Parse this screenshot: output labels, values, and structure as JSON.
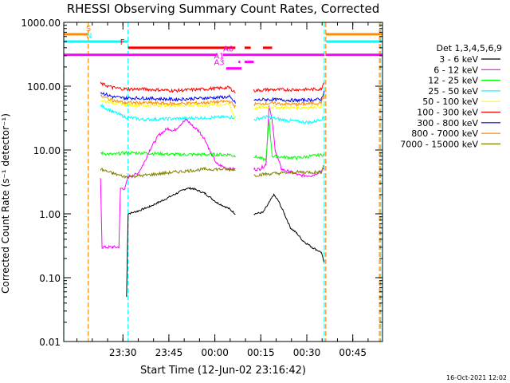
{
  "chart_data": {
    "type": "line",
    "title": "RHESSI Observing Summary Count Rates, Corrected",
    "xlabel": "Start Time (12-Jun-02 23:16:42)",
    "ylabel": "Corrected Count Rate (s⁻¹ detector⁻¹)",
    "yscale": "log",
    "ylim": [
      0.01,
      1000
    ],
    "xlim_minutes": [
      -6,
      98
    ],
    "y_ticks": [
      {
        "v": 1000,
        "label": "1000.00"
      },
      {
        "v": 100,
        "label": "100.00"
      },
      {
        "v": 10,
        "label": "10.00"
      },
      {
        "v": 1,
        "label": "1.00"
      },
      {
        "v": 0.1,
        "label": "0.10"
      },
      {
        "v": 0.01,
        "label": "0.01"
      }
    ],
    "x_ticks": [
      {
        "t": 13.3,
        "label": "23:30"
      },
      {
        "t": 28.3,
        "label": "23:45"
      },
      {
        "t": 43.3,
        "label": "00:00"
      },
      {
        "t": 58.3,
        "label": "00:15"
      },
      {
        "t": 73.3,
        "label": "00:30"
      },
      {
        "t": 88.3,
        "label": "00:45"
      }
    ],
    "legend_title": "Det 1,3,4,5,6,9",
    "legend_position": "right",
    "series": [
      {
        "name": "3 - 6 keV",
        "color": "#000000",
        "points": [
          [
            0,
            null
          ],
          [
            5,
            null
          ],
          [
            14.5,
            0.05
          ],
          [
            15,
            1.0
          ],
          [
            18,
            1.1
          ],
          [
            22,
            1.3
          ],
          [
            26,
            1.6
          ],
          [
            30,
            2.0
          ],
          [
            34,
            2.5
          ],
          [
            36,
            2.5
          ],
          [
            40,
            2.1
          ],
          [
            44,
            1.5
          ],
          [
            48,
            1.2
          ],
          [
            50,
            1.0
          ],
          [
            50.5,
            null
          ],
          [
            56,
            1.0
          ],
          [
            59,
            1.05
          ],
          [
            61,
            1.5
          ],
          [
            62.5,
            2.0
          ],
          [
            64,
            1.6
          ],
          [
            66,
            1.0
          ],
          [
            68,
            0.6
          ],
          [
            70,
            0.5
          ],
          [
            72,
            0.38
          ],
          [
            75,
            0.3
          ],
          [
            78,
            0.25
          ],
          [
            79,
            0.17
          ]
        ]
      },
      {
        "name": "6 - 12 keV",
        "color": "#ff00ff",
        "points": [
          [
            5,
            null
          ],
          [
            6,
            3.5
          ],
          [
            6.5,
            0.3
          ],
          [
            10,
            0.3
          ],
          [
            12,
            0.3
          ],
          [
            12.5,
            2.5
          ],
          [
            14,
            2.5
          ],
          [
            15,
            3.8
          ],
          [
            18,
            4.2
          ],
          [
            20,
            6
          ],
          [
            22,
            10
          ],
          [
            25,
            17
          ],
          [
            28,
            22
          ],
          [
            30,
            20
          ],
          [
            32,
            25
          ],
          [
            34,
            30
          ],
          [
            36,
            24
          ],
          [
            38,
            20
          ],
          [
            40,
            15
          ],
          [
            42,
            9
          ],
          [
            44,
            6
          ],
          [
            48,
            5
          ],
          [
            50,
            5
          ],
          [
            50.5,
            null
          ],
          [
            56,
            5
          ],
          [
            58,
            5
          ],
          [
            60,
            6
          ],
          [
            61,
            50
          ],
          [
            62,
            28
          ],
          [
            63,
            10
          ],
          [
            65,
            5
          ],
          [
            68,
            4.5
          ],
          [
            71,
            4
          ],
          [
            75,
            4
          ],
          [
            79,
            5
          ]
        ]
      },
      {
        "name": "12 - 25 keV",
        "color": "#00ff00",
        "points": [
          [
            6,
            9
          ],
          [
            10,
            8.5
          ],
          [
            14,
            9
          ],
          [
            20,
            9
          ],
          [
            30,
            8.5
          ],
          [
            40,
            8.5
          ],
          [
            48,
            8.5
          ],
          [
            50,
            8
          ],
          [
            50.5,
            null
          ],
          [
            56,
            8
          ],
          [
            60,
            7
          ],
          [
            61,
            30
          ],
          [
            62,
            8
          ],
          [
            70,
            7.5
          ],
          [
            79,
            8.5
          ]
        ]
      },
      {
        "name": "25 - 50 keV",
        "color": "#00ffff",
        "points": [
          [
            6,
            50
          ],
          [
            10,
            40
          ],
          [
            14,
            33
          ],
          [
            20,
            30
          ],
          [
            30,
            31
          ],
          [
            40,
            32
          ],
          [
            48,
            33
          ],
          [
            50,
            32
          ],
          [
            50.5,
            null
          ],
          [
            56,
            30
          ],
          [
            60,
            33
          ],
          [
            65,
            30
          ],
          [
            70,
            28
          ],
          [
            75,
            27
          ],
          [
            79,
            32
          ]
        ]
      },
      {
        "name": "50 - 100 keV",
        "color": "#ffff00",
        "points": [
          [
            6,
            60
          ],
          [
            10,
            55
          ],
          [
            14,
            52
          ],
          [
            20,
            50
          ],
          [
            30,
            50
          ],
          [
            40,
            50
          ],
          [
            48,
            52
          ],
          [
            50,
            30
          ],
          [
            50.5,
            null
          ],
          [
            56,
            45
          ],
          [
            60,
            47
          ],
          [
            70,
            46
          ],
          [
            78,
            48
          ],
          [
            79,
            55
          ]
        ]
      },
      {
        "name": "100 - 300 keV",
        "color": "#ff0000",
        "points": [
          [
            6,
            110
          ],
          [
            10,
            95
          ],
          [
            14,
            90
          ],
          [
            20,
            90
          ],
          [
            30,
            85
          ],
          [
            40,
            90
          ],
          [
            48,
            95
          ],
          [
            50,
            80
          ],
          [
            50.5,
            null
          ],
          [
            56,
            85
          ],
          [
            60,
            88
          ],
          [
            70,
            88
          ],
          [
            78,
            90
          ],
          [
            79,
            120
          ]
        ]
      },
      {
        "name": "300 - 800 keV",
        "color": "#0000ff",
        "points": [
          [
            6,
            80
          ],
          [
            10,
            68
          ],
          [
            14,
            65
          ],
          [
            20,
            65
          ],
          [
            30,
            62
          ],
          [
            40,
            65
          ],
          [
            48,
            68
          ],
          [
            50,
            55
          ],
          [
            50.5,
            null
          ],
          [
            56,
            60
          ],
          [
            60,
            62
          ],
          [
            70,
            60
          ],
          [
            78,
            62
          ],
          [
            79,
            85
          ]
        ]
      },
      {
        "name": "800 - 7000 keV",
        "color": "#ff8c00",
        "points": [
          [
            6,
            70
          ],
          [
            10,
            60
          ],
          [
            14,
            55
          ],
          [
            20,
            55
          ],
          [
            30,
            53
          ],
          [
            40,
            55
          ],
          [
            48,
            58
          ],
          [
            50,
            48
          ],
          [
            50.5,
            null
          ],
          [
            56,
            52
          ],
          [
            60,
            54
          ],
          [
            70,
            52
          ],
          [
            78,
            55
          ],
          [
            79,
            70
          ]
        ]
      },
      {
        "name": "7000 - 15000 keV",
        "color": "#808000",
        "points": [
          [
            6,
            5
          ],
          [
            10,
            4.3
          ],
          [
            14,
            3.8
          ],
          [
            20,
            4
          ],
          [
            30,
            4.5
          ],
          [
            40,
            5
          ],
          [
            48,
            5
          ],
          [
            50,
            5
          ],
          [
            50.5,
            null
          ],
          [
            56,
            4
          ],
          [
            60,
            4.2
          ],
          [
            70,
            4.5
          ],
          [
            78,
            4.5
          ],
          [
            79,
            6
          ]
        ]
      }
    ],
    "vertical_lines": [
      {
        "t": -6,
        "color": "#00ffff"
      },
      {
        "t": 2,
        "color": "#ff8c00"
      },
      {
        "t": 15,
        "color": "#00ffff"
      },
      {
        "t": 79,
        "color": "#00ffff"
      },
      {
        "t": 79.5,
        "color": "#ff8c00"
      },
      {
        "t": 97,
        "color": "#ff8c00"
      },
      {
        "t": 97.4,
        "color": "#00ffff"
      }
    ],
    "flag_bars": [
      {
        "label": "S",
        "color": "#ff8c00",
        "y": 650,
        "segments": [
          [
            -6,
            2
          ],
          [
            79.5,
            98
          ]
        ]
      },
      {
        "label": "N",
        "color": "#00ffff",
        "y": 500,
        "segments": [
          [
            -6,
            15
          ],
          [
            79.5,
            98
          ]
        ]
      },
      {
        "label": "F",
        "color": "#ff0000",
        "y": 400,
        "segments": [
          [
            15,
            50
          ],
          [
            53,
            55
          ],
          [
            59,
            62
          ]
        ]
      },
      {
        "label": "",
        "color": "#ff00ff",
        "y": 310,
        "segments": [
          [
            -6,
            44
          ],
          [
            46,
            79
          ],
          [
            79.5,
            98
          ]
        ]
      },
      {
        "label": "A0",
        "color": "#ff00ff",
        "y": 310,
        "segments": [],
        "label_t": 46
      },
      {
        "label": "A1",
        "color": "#ff00ff",
        "y": 240,
        "segments": [
          [
            51,
            51.6
          ],
          [
            53,
            56
          ]
        ],
        "label_t": 43
      },
      {
        "label": "A3",
        "color": "#ff00ff",
        "y": 190,
        "segments": [
          [
            47,
            52
          ]
        ],
        "label_t": 43
      }
    ]
  },
  "timestamp": "16-Oct-2021 12:02"
}
